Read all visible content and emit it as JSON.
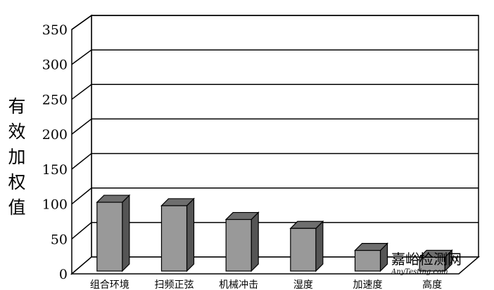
{
  "chart_data": {
    "type": "bar",
    "ylabel": "有效加权值",
    "xlabel": "",
    "categories": [
      "组合环境",
      "扫频正弦",
      "机械冲击",
      "湿度",
      "加速度",
      "高度"
    ],
    "values": [
      100,
      95,
      75,
      62,
      30,
      20
    ],
    "ylim": [
      0,
      350
    ],
    "yticks": [
      0,
      50,
      100,
      150,
      200,
      250,
      300,
      350
    ],
    "grid": true,
    "style": "3d",
    "bar_color": "#999999"
  },
  "watermark": {
    "text": "嘉峪检测网",
    "subtext": "AnyTesting.com"
  }
}
